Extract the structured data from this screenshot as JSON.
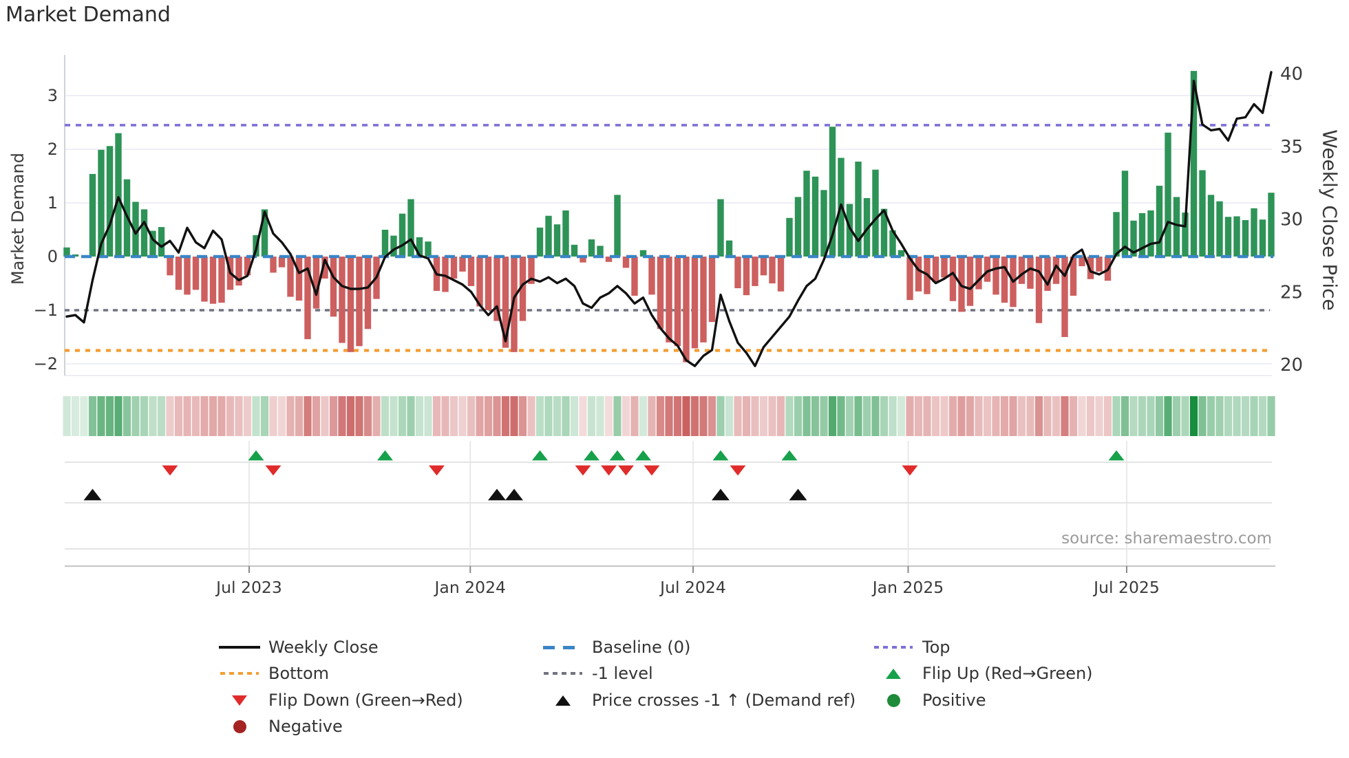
{
  "page": {
    "title": "Market Demand",
    "source": "source: sharemaestro.com"
  },
  "chart_data": {
    "type": "bar",
    "title": "Market Demand",
    "ylabel_left": "Market Demand",
    "ylabel_right": "Weekly Close Price",
    "ylim_left": [
      -2.35,
      3.75
    ],
    "ylim_right": [
      19.4,
      40.6
    ],
    "grid": "horizontal-only",
    "yticks_left": [
      {
        "value": 3,
        "label": "3"
      },
      {
        "value": 2,
        "label": "2"
      },
      {
        "value": 1,
        "label": "1"
      },
      {
        "value": 0,
        "label": "0"
      },
      {
        "value": -1,
        "label": "−1"
      },
      {
        "value": -2,
        "label": "−2"
      }
    ],
    "yticks_right": [
      {
        "value": 40,
        "label": "40"
      },
      {
        "value": 35,
        "label": "35"
      },
      {
        "value": 30,
        "label": "30"
      },
      {
        "value": 25,
        "label": "25"
      },
      {
        "value": 20,
        "label": "20"
      }
    ],
    "x_ticks": [
      {
        "label": "Jul 2023",
        "week": 21.2
      },
      {
        "label": "Jan 2024",
        "week": 46.9
      },
      {
        "label": "Jul 2024",
        "week": 72.8
      },
      {
        "label": "Jan 2025",
        "week": 97.8
      },
      {
        "label": "Jul 2025",
        "week": 123.2
      }
    ],
    "reference_lines": {
      "baseline": 0,
      "top": 2.45,
      "bottom": -1.75,
      "minus_one_level": -1
    },
    "n_weeks": 141,
    "series": [
      {
        "name": "Market Demand (weekly bars)",
        "axis": "left",
        "values": [
          0.17,
          0.04,
          0.0,
          1.54,
          1.99,
          2.06,
          2.3,
          1.44,
          1.02,
          0.88,
          0.48,
          0.55,
          -0.35,
          -0.62,
          -0.71,
          -0.62,
          -0.84,
          -0.88,
          -0.86,
          -0.62,
          -0.54,
          -0.35,
          0.4,
          0.88,
          -0.3,
          -0.2,
          -0.75,
          -0.82,
          -1.54,
          -0.97,
          -0.41,
          -1.12,
          -1.61,
          -1.78,
          -1.67,
          -1.35,
          -0.79,
          0.5,
          0.39,
          0.8,
          1.07,
          0.36,
          0.28,
          -0.64,
          -0.66,
          -0.41,
          -0.28,
          -0.55,
          -0.93,
          -1.0,
          -1.2,
          -1.7,
          -1.78,
          -1.2,
          -0.51,
          0.54,
          0.76,
          0.6,
          0.86,
          0.22,
          -0.11,
          0.32,
          0.2,
          -0.1,
          1.15,
          -0.21,
          -0.73,
          0.12,
          -0.71,
          -1.35,
          -1.6,
          -1.67,
          -1.97,
          -1.71,
          -1.6,
          -1.22,
          1.07,
          0.3,
          -0.59,
          -0.72,
          -0.55,
          -0.35,
          -0.5,
          -0.65,
          0.72,
          1.11,
          1.6,
          1.49,
          1.24,
          2.42,
          1.84,
          0.98,
          1.77,
          1.09,
          1.62,
          0.89,
          0.49,
          0.12,
          -0.81,
          -0.65,
          -0.7,
          -0.48,
          -0.39,
          -0.83,
          -1.03,
          -0.92,
          -0.61,
          -0.47,
          -0.71,
          -0.86,
          -0.94,
          -0.51,
          -0.6,
          -1.24,
          -0.64,
          -0.51,
          -1.5,
          -0.73,
          -0.18,
          -0.42,
          -0.28,
          -0.45,
          0.83,
          1.6,
          0.67,
          0.81,
          0.86,
          1.32,
          2.31,
          1.11,
          0.82,
          3.46,
          1.61,
          1.15,
          1.03,
          0.74,
          0.75,
          0.68,
          0.9,
          0.69,
          1.19
        ]
      },
      {
        "name": "Weekly Close",
        "axis": "right",
        "values": [
          23.3,
          23.4,
          22.9,
          25.8,
          28.3,
          29.6,
          31.5,
          30.2,
          29.0,
          29.8,
          28.6,
          28.1,
          28.5,
          27.7,
          29.4,
          28.4,
          28.0,
          29.2,
          28.6,
          26.3,
          25.8,
          26.1,
          27.9,
          30.5,
          29.0,
          28.4,
          27.6,
          26.3,
          26.6,
          24.8,
          27.2,
          26.0,
          25.4,
          25.2,
          25.2,
          25.3,
          26.0,
          27.4,
          27.9,
          28.2,
          28.6,
          27.5,
          27.3,
          26.2,
          26.1,
          25.8,
          25.5,
          25.0,
          24.1,
          23.4,
          24.0,
          21.6,
          24.6,
          25.5,
          25.9,
          25.7,
          26.0,
          25.6,
          25.9,
          25.4,
          24.2,
          23.9,
          24.6,
          24.9,
          25.4,
          24.9,
          24.2,
          24.6,
          23.4,
          22.5,
          21.8,
          21.3,
          20.3,
          19.9,
          20.6,
          21.0,
          24.8,
          23.0,
          21.5,
          20.8,
          19.9,
          21.2,
          21.9,
          22.6,
          23.3,
          24.4,
          25.4,
          25.9,
          27.2,
          28.9,
          31.0,
          29.4,
          28.5,
          29.3,
          30.0,
          30.6,
          29.2,
          28.3,
          27.3,
          26.5,
          26.2,
          25.6,
          25.9,
          26.3,
          25.4,
          25.2,
          25.8,
          26.4,
          26.6,
          26.7,
          25.7,
          26.2,
          26.6,
          26.4,
          25.5,
          26.8,
          26.1,
          27.5,
          27.9,
          26.4,
          26.2,
          26.5,
          27.6,
          28.1,
          27.7,
          28.0,
          28.3,
          28.4,
          29.8,
          29.6,
          29.5,
          39.5,
          36.5,
          36.1,
          36.2,
          35.4,
          36.9,
          37.0,
          37.9,
          37.3,
          40.1
        ]
      }
    ],
    "heatmap": {
      "description": "weekly demand intensity strip, green positive / red negative",
      "source_series": "Market Demand (weekly bars)"
    },
    "markers": {
      "flip_up_weeks": [
        22,
        37,
        55,
        61,
        64,
        67,
        76,
        84,
        122
      ],
      "flip_down_weeks": [
        12,
        24,
        43,
        60,
        63,
        65,
        68,
        78,
        98
      ],
      "price_cross_weeks": [
        3,
        50,
        52,
        76,
        85
      ]
    }
  },
  "legend": {
    "items": [
      {
        "label": "Weekly Close",
        "swatch": "line",
        "color": "#111111",
        "col": 0,
        "row": 0
      },
      {
        "label": "Baseline (0)",
        "swatch": "dash",
        "color": "#3a85c6",
        "col": 1,
        "row": 0
      },
      {
        "label": "Top",
        "swatch": "dots",
        "color": "#7d70d8",
        "col": 2,
        "row": 0
      },
      {
        "label": "Bottom",
        "swatch": "dots",
        "color": "#f39e33",
        "col": 0,
        "row": 1
      },
      {
        "label": "-1 level",
        "swatch": "dots",
        "color": "#70737f",
        "col": 1,
        "row": 1
      },
      {
        "label": "Flip Up (Red→Green)",
        "swatch": "tri-up",
        "color": "#17a14b",
        "col": 2,
        "row": 1
      },
      {
        "label": "Flip Down (Green→Red)",
        "swatch": "tri-down",
        "color": "#e02b2b",
        "col": 0,
        "row": 2
      },
      {
        "label": "Price crosses -1 ↑ (Demand ref)",
        "swatch": "tri-up",
        "color": "#111111",
        "col": 1,
        "row": 2
      },
      {
        "label": "Positive",
        "swatch": "circle",
        "color": "#1e8b3a",
        "col": 2,
        "row": 2
      },
      {
        "label": "Negative",
        "swatch": "circle",
        "color": "#a52323",
        "col": 0,
        "row": 3
      }
    ]
  },
  "colors": {
    "bar_positive": "#2e9357",
    "bar_negative": "#cd5f5f",
    "price_line": "#111111",
    "baseline": "#3a85c6",
    "top_line": "#7d70d8",
    "bottom_line": "#f39e33",
    "minus_one_line": "#70737f",
    "flip_up_marker": "#17a14b",
    "flip_down_marker": "#e02b2b",
    "price_cross_marker": "#111111",
    "heat_green_base": "#158c3c",
    "heat_red_base": "#c34b4b",
    "grid": "#e8eaf2",
    "spine": "#cfd2d6",
    "panel_line": "#dcdcdc",
    "axis_line": "#c4c4c4",
    "tick_text": "#3a3a3a"
  }
}
